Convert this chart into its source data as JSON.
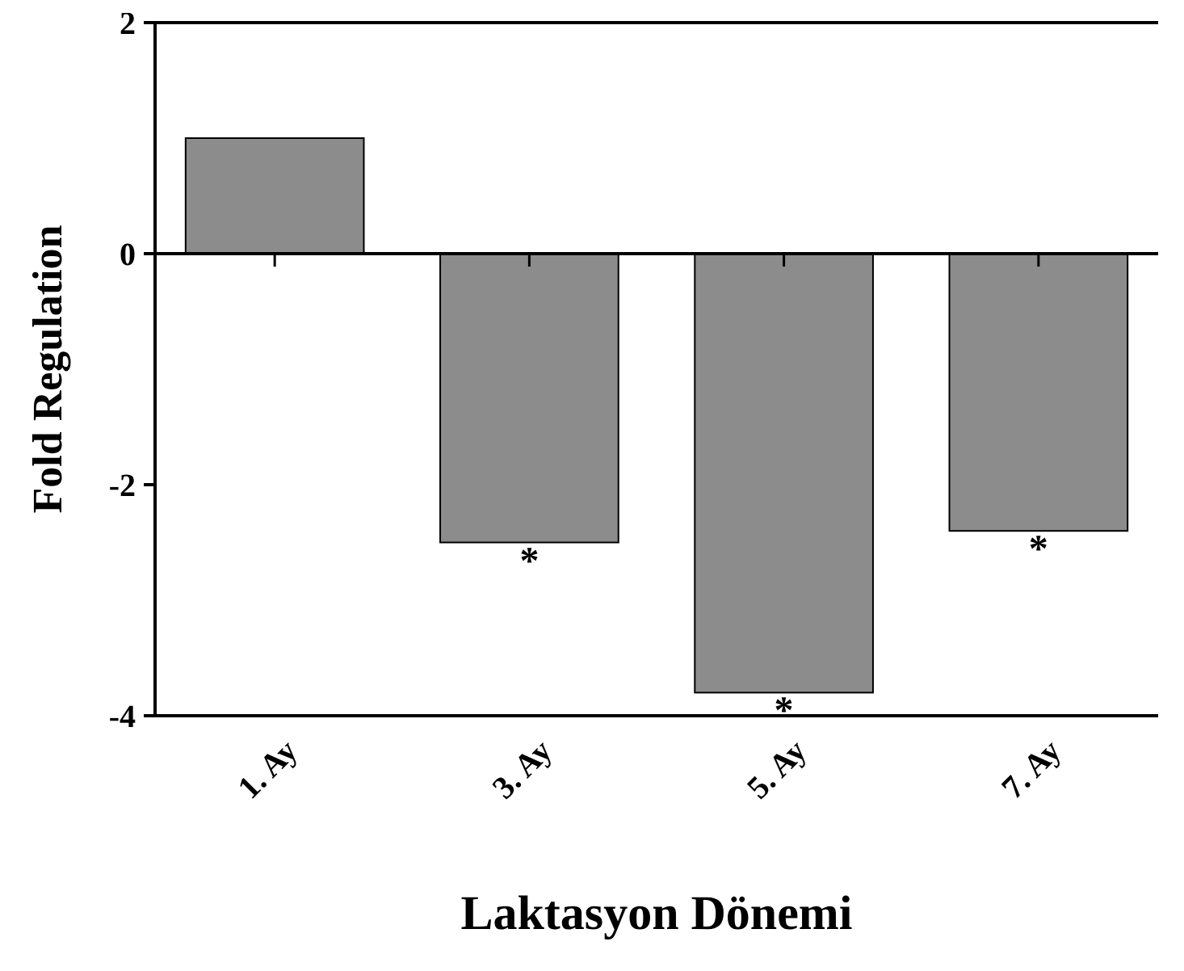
{
  "chart_data": {
    "type": "bar",
    "xlabel": "Laktasyon Dönemi",
    "ylabel": "Fold Regulation",
    "categories": [
      "1. Ay",
      "3. Ay",
      "5. Ay",
      "7. Ay"
    ],
    "values": [
      1.0,
      -2.5,
      -3.8,
      -2.4
    ],
    "color": "#8c8c8c",
    "ylim": [
      -4,
      2
    ],
    "yticks": [
      -4,
      -2,
      0,
      2
    ],
    "ref_lines": [
      {
        "axis": "y",
        "value": 0
      }
    ],
    "annotations": [
      {
        "text": "*",
        "x": "3. Ay",
        "y": -2.5
      },
      {
        "text": "*",
        "x": "5. Ay",
        "y": -3.8
      },
      {
        "text": "*",
        "x": "7. Ay",
        "y": -2.4
      }
    ],
    "grid": false
  }
}
